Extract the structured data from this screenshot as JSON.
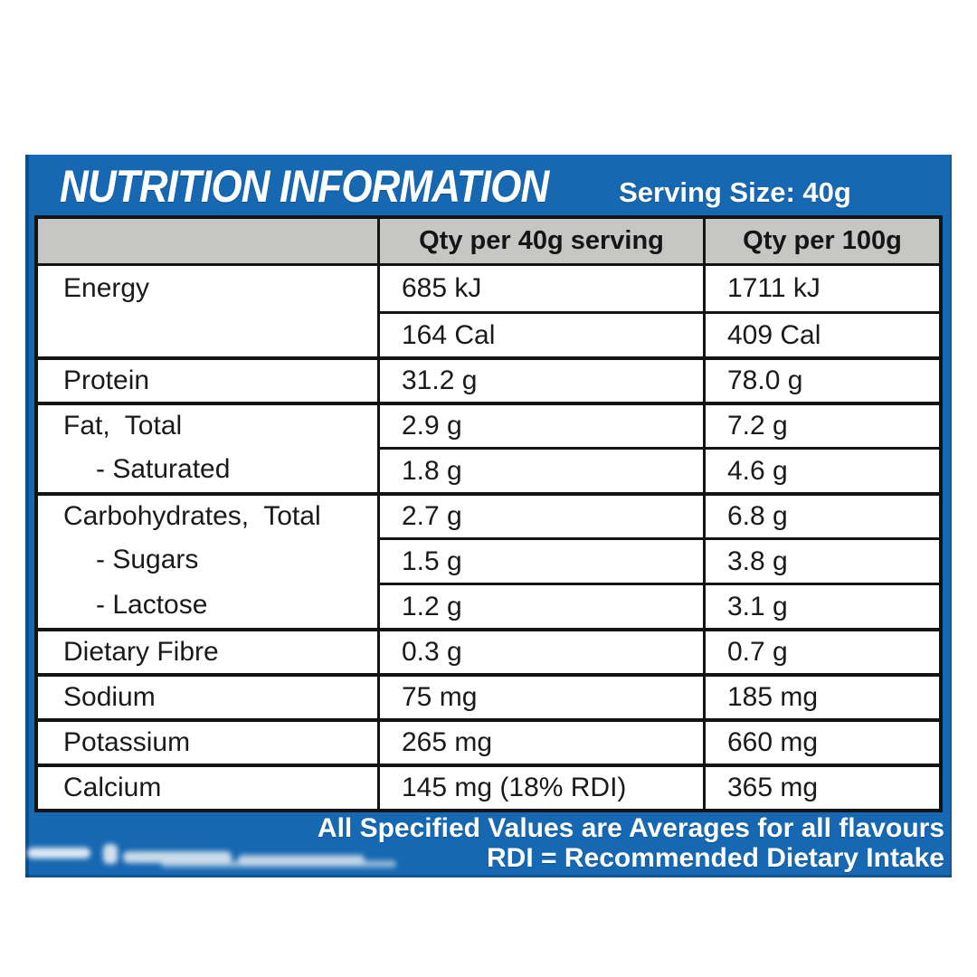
{
  "panel": {
    "title": "NUTRITION INFORMATION",
    "serving_size": "Serving Size: 40g",
    "accent_blue": "#1768b2",
    "header_gray": "#c6c7c5",
    "border_black": "#141414"
  },
  "table": {
    "columns": [
      "",
      "Qty per 40g serving",
      "Qty per 100g"
    ],
    "rows": [
      {
        "label": "Energy",
        "per_serving": "685 kJ",
        "per_100g": "1711 kJ"
      },
      {
        "label": "",
        "per_serving": "164 Cal",
        "per_100g": "409 Cal"
      },
      {
        "label": "Protein",
        "per_serving": "31.2 g",
        "per_100g": "78.0 g"
      },
      {
        "label": "Fat,  Total",
        "per_serving": "2.9 g",
        "per_100g": "7.2 g"
      },
      {
        "label": "- Saturated",
        "per_serving": "1.8 g",
        "per_100g": "4.6 g"
      },
      {
        "label": "Carbohydrates,  Total",
        "per_serving": "2.7 g",
        "per_100g": "6.8 g"
      },
      {
        "label": "- Sugars",
        "per_serving": "1.5 g",
        "per_100g": "3.8 g"
      },
      {
        "label": "- Lactose",
        "per_serving": "1.2 g",
        "per_100g": "3.1 g"
      },
      {
        "label": "Dietary Fibre",
        "per_serving": "0.3 g",
        "per_100g": "0.7 g"
      },
      {
        "label": "Sodium",
        "per_serving": "75 mg",
        "per_100g": "185 mg"
      },
      {
        "label": "Potassium",
        "per_serving": "265 mg",
        "per_100g": "660 mg"
      },
      {
        "label": "Calcium",
        "per_serving": "145 mg (18% RDI)",
        "per_100g": "365 mg"
      }
    ]
  },
  "footer": {
    "line1": "All Specified Values are Averages for all flavours",
    "line2": "RDI = Recommended Dietary Intake"
  }
}
